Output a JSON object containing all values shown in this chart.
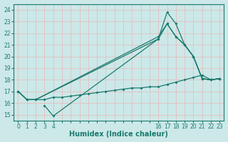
{
  "xlabel": "Humidex (Indice chaleur)",
  "xlim": [
    -0.5,
    23.5
  ],
  "ylim": [
    14.5,
    24.5
  ],
  "xtick_positions": [
    0,
    1,
    2,
    3,
    4,
    5,
    6,
    7,
    8,
    9,
    10,
    11,
    12,
    13,
    14,
    15,
    16,
    17,
    18,
    19,
    20,
    21,
    22,
    23
  ],
  "xtick_labels_show": {
    "0": "0",
    "1": "1",
    "2": "2",
    "3": "3",
    "4": "4",
    "16": "16",
    "17": "17",
    "18": "18",
    "19": "19",
    "20": "20",
    "21": "21",
    "22": "22",
    "23": "23"
  },
  "yticks": [
    15,
    16,
    17,
    18,
    19,
    20,
    21,
    22,
    23,
    24
  ],
  "bg_color": "#cce8e8",
  "grid_color": "#e8b8b8",
  "line_color": "#1a7a6e",
  "lines": [
    {
      "x": [
        0,
        1,
        2,
        16,
        17,
        18,
        19,
        20,
        21,
        22,
        23
      ],
      "y": [
        17.0,
        16.3,
        16.3,
        21.5,
        23.8,
        22.8,
        21.0,
        20.0,
        18.1,
        18.0,
        18.1
      ]
    },
    {
      "x": [
        0,
        1,
        2,
        16,
        17,
        18,
        19,
        20,
        21,
        22,
        23
      ],
      "y": [
        17.0,
        16.3,
        16.3,
        21.7,
        22.8,
        21.7,
        21.0,
        20.0,
        18.1,
        18.0,
        18.1
      ]
    },
    {
      "x": [
        3,
        4,
        16,
        17,
        18,
        19,
        20,
        21,
        22,
        23
      ],
      "y": [
        15.8,
        14.9,
        21.5,
        22.8,
        21.7,
        21.0,
        20.0,
        18.1,
        18.0,
        18.1
      ]
    },
    {
      "x": [
        0,
        1,
        2,
        3,
        4,
        5,
        6,
        7,
        8,
        9,
        10,
        11,
        12,
        13,
        14,
        15,
        16,
        17,
        18,
        19,
        20,
        21,
        22,
        23
      ],
      "y": [
        17.0,
        16.3,
        16.3,
        16.3,
        16.5,
        16.5,
        16.6,
        16.7,
        16.8,
        16.9,
        17.0,
        17.1,
        17.2,
        17.3,
        17.3,
        17.4,
        17.4,
        17.6,
        17.8,
        18.0,
        18.2,
        18.4,
        18.0,
        18.1
      ]
    }
  ]
}
